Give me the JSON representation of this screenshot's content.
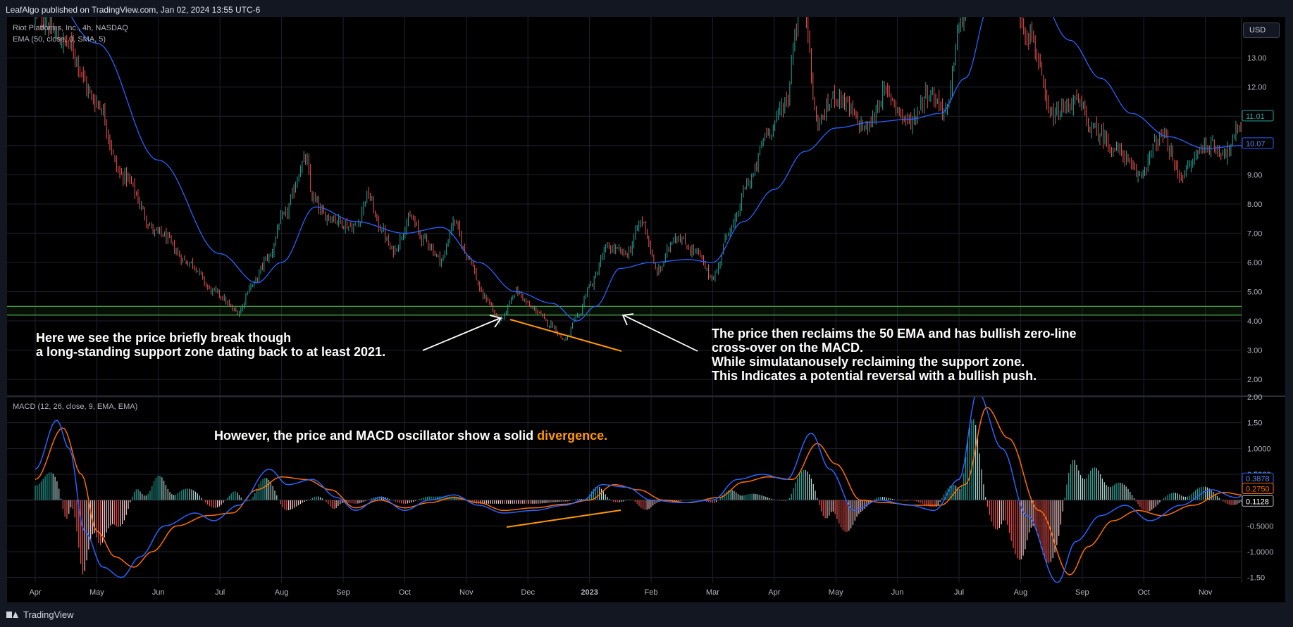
{
  "header": {
    "published": "LeafAlgo published on TradingView.com, Jan 02, 2024 13:55 UTC-6"
  },
  "footer": {
    "brand": "TradingView",
    "logo_icon": "tradingview-logo-icon"
  },
  "currency_label": "USD",
  "legend": {
    "symbol": "Riot Platforms, Inc., 4h, NASDAQ",
    "ema": "EMA (50, close, 0, SMA, 5)",
    "macd": "MACD (12, 26, close, 9, EMA, EMA)"
  },
  "annotations": {
    "left_line1": "Here we see the price briefly break though",
    "left_line2": "a long-standing support zone dating back to at least 2021.",
    "right_line1": "The price then reclaims the 50 EMA and has bullish zero-line",
    "right_line2": "cross-over on the MACD.",
    "right_line3": "While simulatanousely reclaiming the support zone.",
    "right_line4": "This Indicates a potential reversal with a bullish push.",
    "macd_text": "However, the price and MACD oscillator show a solid ",
    "macd_highlight": "divergence."
  },
  "colors": {
    "background": "#131722",
    "pane": "#000000",
    "grid": "#1e222d",
    "up_candle": "#26a69a",
    "down_candle": "#ef5350",
    "ema_line": "#2962ff",
    "macd_line": "#2962ff",
    "signal_line": "#ff6d00",
    "support_zone": "#4caf50",
    "divergence": "#ff9800",
    "arrow": "#ffffff"
  },
  "chart_data": [
    {
      "type": "line",
      "name": "price",
      "xlabel": "",
      "ylabel": "",
      "x_ticks": [
        "Apr",
        "May",
        "Jun",
        "Jul",
        "Aug",
        "Sep",
        "Oct",
        "Nov",
        "Dec",
        "2023",
        "Feb",
        "Mar",
        "Apr",
        "May",
        "Jun",
        "Jul",
        "Aug",
        "Sep",
        "Oct",
        "Nov"
      ],
      "y_ticks": [
        "2.00",
        "3.00",
        "4.00",
        "5.00",
        "6.00",
        "7.00",
        "8.00",
        "9.00",
        "10.00",
        "11.00",
        "12.00",
        "13.00"
      ],
      "ylim": [
        1.45,
        14.4
      ],
      "support_zone": [
        4.2,
        4.5
      ],
      "last_price": "11.01",
      "ema_last": "10.07",
      "price_anchors": [
        [
          0.0,
          14.5
        ],
        [
          0.5,
          13.5
        ],
        [
          1.0,
          11.5
        ],
        [
          1.4,
          9.0
        ],
        [
          2.0,
          7.0
        ],
        [
          2.5,
          6.0
        ],
        [
          2.9,
          5.0
        ],
        [
          3.3,
          4.3
        ],
        [
          3.5,
          5.2
        ],
        [
          3.8,
          6.2
        ],
        [
          4.0,
          7.5
        ],
        [
          4.4,
          9.5
        ],
        [
          4.5,
          8.2
        ],
        [
          4.7,
          7.6
        ],
        [
          5.2,
          7.2
        ],
        [
          5.4,
          8.3
        ],
        [
          5.6,
          7.2
        ],
        [
          5.8,
          6.4
        ],
        [
          6.1,
          7.5
        ],
        [
          6.3,
          6.8
        ],
        [
          6.6,
          6.1
        ],
        [
          6.8,
          7.4
        ],
        [
          7.0,
          6.3
        ],
        [
          7.3,
          4.8
        ],
        [
          7.55,
          4.0
        ],
        [
          7.8,
          5.0
        ],
        [
          8.1,
          4.4
        ],
        [
          8.35,
          3.9
        ],
        [
          8.6,
          3.35
        ],
        [
          8.8,
          4.1
        ],
        [
          9.0,
          5.2
        ],
        [
          9.3,
          6.5
        ],
        [
          9.6,
          6.3
        ],
        [
          9.85,
          7.4
        ],
        [
          10.1,
          5.7
        ],
        [
          10.4,
          6.9
        ],
        [
          10.7,
          6.4
        ],
        [
          11.0,
          5.5
        ],
        [
          11.3,
          7.2
        ],
        [
          11.6,
          8.8
        ],
        [
          11.9,
          10.5
        ],
        [
          12.2,
          11.5
        ],
        [
          12.35,
          14.0
        ],
        [
          12.45,
          15.5
        ],
        [
          12.7,
          10.8
        ],
        [
          13.0,
          11.7
        ],
        [
          13.5,
          10.6
        ],
        [
          13.8,
          11.8
        ],
        [
          14.2,
          10.8
        ],
        [
          14.5,
          11.8
        ],
        [
          14.8,
          11.2
        ],
        [
          15.0,
          14.0
        ],
        [
          15.3,
          16.5
        ],
        [
          15.8,
          15.5
        ],
        [
          16.15,
          13.8
        ],
        [
          16.5,
          11.0
        ],
        [
          16.9,
          11.5
        ],
        [
          17.2,
          10.5
        ],
        [
          17.6,
          9.8
        ],
        [
          17.9,
          9.0
        ],
        [
          18.3,
          10.3
        ],
        [
          18.6,
          9.0
        ],
        [
          19.0,
          10.0
        ],
        [
          19.35,
          9.8
        ],
        [
          19.6,
          10.8
        ],
        [
          19.9,
          11.01
        ]
      ],
      "ema_anchors": [
        [
          0.0,
          16.0
        ],
        [
          1.0,
          13.5
        ],
        [
          2.0,
          9.5
        ],
        [
          3.0,
          6.3
        ],
        [
          3.6,
          5.3
        ],
        [
          4.0,
          6.0
        ],
        [
          4.55,
          7.9
        ],
        [
          5.2,
          7.4
        ],
        [
          6.0,
          7.0
        ],
        [
          6.6,
          7.2
        ],
        [
          7.2,
          6.0
        ],
        [
          7.8,
          5.0
        ],
        [
          8.4,
          4.6
        ],
        [
          8.8,
          4.0
        ],
        [
          9.1,
          4.5
        ],
        [
          9.5,
          5.8
        ],
        [
          10.0,
          6.0
        ],
        [
          10.6,
          6.1
        ],
        [
          11.0,
          6.0
        ],
        [
          11.5,
          7.4
        ],
        [
          12.0,
          8.5
        ],
        [
          12.5,
          9.8
        ],
        [
          13.0,
          10.6
        ],
        [
          13.6,
          10.8
        ],
        [
          14.2,
          10.9
        ],
        [
          14.7,
          11.1
        ],
        [
          15.1,
          12.3
        ],
        [
          15.5,
          14.8
        ],
        [
          16.2,
          15.5
        ],
        [
          16.8,
          13.6
        ],
        [
          17.3,
          12.3
        ],
        [
          17.8,
          11.1
        ],
        [
          18.4,
          10.3
        ],
        [
          19.0,
          9.9
        ],
        [
          19.6,
          10.0
        ],
        [
          19.9,
          10.07
        ]
      ]
    },
    {
      "type": "line",
      "name": "MACD (12, 26, close, 9, EMA, EMA)",
      "xlabel": "",
      "ylabel": "",
      "y_ticks": [
        "-1.50",
        "-1.0000",
        "-0.5000",
        "0.0000",
        "0.5000",
        "1.0000",
        "1.50",
        "2.00"
      ],
      "ylim": [
        -1.6,
        2.0
      ],
      "last_values": {
        "macd": "0.3878",
        "signal": "0.2750",
        "histogram": "0.1128"
      },
      "macd_anchors": [
        [
          0.0,
          0.6
        ],
        [
          0.35,
          1.55
        ],
        [
          0.55,
          1.0
        ],
        [
          0.8,
          -0.6
        ],
        [
          1.1,
          -1.3
        ],
        [
          1.4,
          -1.5
        ],
        [
          1.7,
          -1.1
        ],
        [
          2.1,
          -0.5
        ],
        [
          2.6,
          -0.25
        ],
        [
          2.9,
          -0.4
        ],
        [
          3.3,
          -0.1
        ],
        [
          3.8,
          0.6
        ],
        [
          4.1,
          0.3
        ],
        [
          4.5,
          0.4
        ],
        [
          4.9,
          0.05
        ],
        [
          5.2,
          -0.2
        ],
        [
          5.6,
          0.05
        ],
        [
          6.0,
          -0.2
        ],
        [
          6.4,
          0.0
        ],
        [
          6.8,
          0.1
        ],
        [
          7.2,
          -0.1
        ],
        [
          7.6,
          -0.25
        ],
        [
          8.1,
          -0.2
        ],
        [
          8.6,
          -0.1
        ],
        [
          8.9,
          0.0
        ],
        [
          9.2,
          0.3
        ],
        [
          9.6,
          0.25
        ],
        [
          10.0,
          0.0
        ],
        [
          10.5,
          -0.05
        ],
        [
          11.0,
          0.0
        ],
        [
          11.4,
          0.4
        ],
        [
          11.8,
          0.5
        ],
        [
          12.2,
          0.4
        ],
        [
          12.6,
          1.3
        ],
        [
          12.9,
          0.6
        ],
        [
          13.3,
          -0.2
        ],
        [
          13.7,
          0.0
        ],
        [
          14.2,
          -0.1
        ],
        [
          14.6,
          -0.2
        ],
        [
          15.0,
          0.4
        ],
        [
          15.3,
          2.1
        ],
        [
          15.7,
          1.0
        ],
        [
          16.1,
          -0.3
        ],
        [
          16.6,
          -1.6
        ],
        [
          16.9,
          -0.8
        ],
        [
          17.3,
          -0.3
        ],
        [
          17.7,
          -0.1
        ],
        [
          18.1,
          -0.4
        ],
        [
          18.6,
          -0.1
        ],
        [
          19.1,
          0.2
        ],
        [
          19.5,
          0.05
        ],
        [
          19.9,
          0.3878
        ]
      ],
      "signal_anchors": [
        [
          0.0,
          0.4
        ],
        [
          0.45,
          1.4
        ],
        [
          0.75,
          0.5
        ],
        [
          1.0,
          -0.6
        ],
        [
          1.3,
          -1.1
        ],
        [
          1.6,
          -1.3
        ],
        [
          1.9,
          -1.0
        ],
        [
          2.3,
          -0.5
        ],
        [
          2.8,
          -0.3
        ],
        [
          3.2,
          -0.25
        ],
        [
          3.6,
          0.2
        ],
        [
          4.0,
          0.45
        ],
        [
          4.4,
          0.4
        ],
        [
          4.8,
          0.2
        ],
        [
          5.2,
          -0.15
        ],
        [
          5.6,
          0.0
        ],
        [
          6.0,
          -0.15
        ],
        [
          6.4,
          -0.05
        ],
        [
          6.8,
          0.05
        ],
        [
          7.2,
          -0.05
        ],
        [
          7.6,
          -0.2
        ],
        [
          8.1,
          -0.15
        ],
        [
          8.6,
          -0.08
        ],
        [
          9.0,
          0.0
        ],
        [
          9.4,
          0.3
        ],
        [
          9.8,
          0.2
        ],
        [
          10.2,
          0.0
        ],
        [
          10.6,
          -0.05
        ],
        [
          11.1,
          0.05
        ],
        [
          11.5,
          0.35
        ],
        [
          11.9,
          0.45
        ],
        [
          12.3,
          0.4
        ],
        [
          12.7,
          1.1
        ],
        [
          13.0,
          0.7
        ],
        [
          13.4,
          0.0
        ],
        [
          13.8,
          -0.05
        ],
        [
          14.3,
          -0.1
        ],
        [
          14.7,
          -0.1
        ],
        [
          15.1,
          0.3
        ],
        [
          15.45,
          1.8
        ],
        [
          15.8,
          1.2
        ],
        [
          16.3,
          -0.2
        ],
        [
          16.8,
          -1.45
        ],
        [
          17.1,
          -0.9
        ],
        [
          17.5,
          -0.4
        ],
        [
          17.9,
          -0.2
        ],
        [
          18.3,
          -0.3
        ],
        [
          18.8,
          -0.1
        ],
        [
          19.3,
          0.15
        ],
        [
          19.6,
          0.1
        ],
        [
          19.9,
          0.275
        ]
      ]
    }
  ]
}
